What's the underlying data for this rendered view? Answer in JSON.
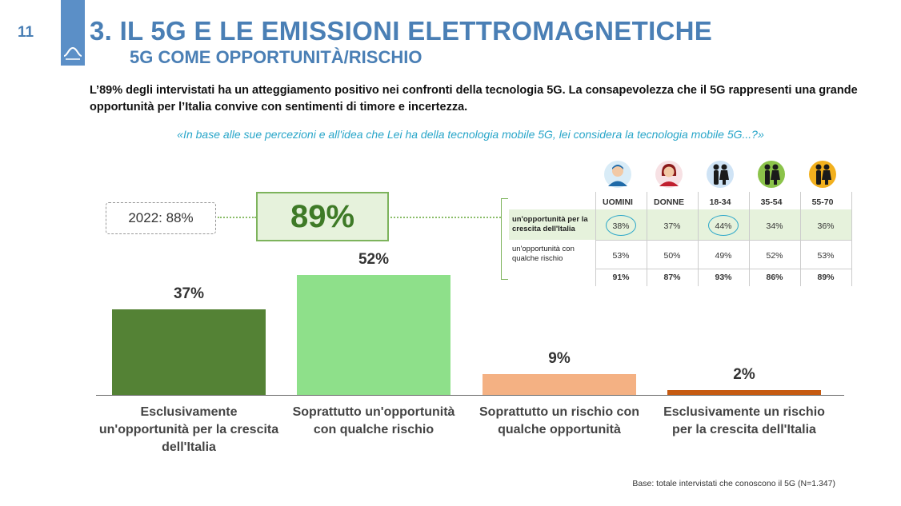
{
  "header": {
    "page_number": "11",
    "title": "3.  IL 5G E LE EMISSIONI ELETTROMAGNETICHE",
    "subtitle": "5G COME OPPORTUNITÀ/RISCHIO"
  },
  "intro": "L’89% degli intervistati ha un atteggiamento positivo nei confronti della tecnologia 5G. La consapevolezza che il 5G rappresenti una grande opportunità per l’Italia convive con sentimenti di timore e incertezza.",
  "question": "«In base alle sue percezioni e all'idea che Lei ha della tecnologia mobile 5G, lei considera la tecnologia mobile 5G...?»",
  "summary": {
    "previous": "2022: 88%",
    "total": "89%"
  },
  "colors": {
    "accent_blue": "#4a7fb5",
    "question_blue": "#29a6c9",
    "bar_dark_green": "#548235",
    "bar_light_green": "#8ee08a",
    "bar_salmon": "#f4b183",
    "bar_brown": "#c55a11"
  },
  "breakdown": {
    "icons": [
      "man-icon",
      "woman-icon",
      "couple-icon",
      "couple-icon",
      "couple-icon"
    ],
    "columns": [
      "UOMINI",
      "DONNE",
      "18-34",
      "35-54",
      "55-70"
    ],
    "rows": [
      {
        "label": "un'opportunità per la crescita dell'Italia",
        "values": [
          "38%",
          "37%",
          "44%",
          "34%",
          "36%"
        ]
      },
      {
        "label": "un'opportunità con qualche rischio",
        "values": [
          "53%",
          "50%",
          "49%",
          "52%",
          "53%"
        ]
      }
    ],
    "totals": [
      "91%",
      "87%",
      "93%",
      "86%",
      "89%"
    ]
  },
  "chart_data": {
    "type": "bar",
    "title": "",
    "categories": [
      "Esclusivamente un'opportunità per la crescita dell'Italia",
      "Soprattutto un'opportunità con qualche rischio",
      "Soprattutto un rischio con qualche opportunità",
      "Esclusivamente un rischio per la crescita dell'Italia"
    ],
    "values": [
      37,
      52,
      9,
      2
    ],
    "value_labels": [
      "37%",
      "52%",
      "9%",
      "2%"
    ],
    "xlabel": "",
    "ylabel": "",
    "ylim": [
      0,
      60
    ],
    "grid": false
  },
  "footer": {
    "base": "Base: totale intervistati che conoscono il 5G (N=1.347)"
  }
}
